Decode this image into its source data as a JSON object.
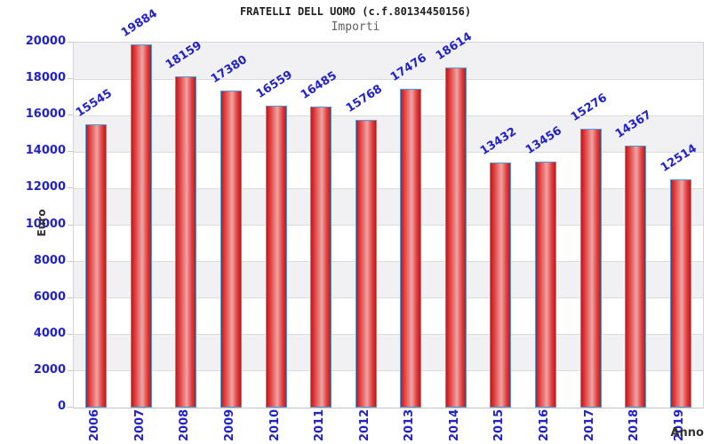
{
  "chart_data": {
    "type": "bar",
    "title": "FRATELLI DELL UOMO (c.f.80134450156)",
    "subtitle": "Importi",
    "xlabel": "Anno",
    "ylabel": "Euro",
    "categories": [
      "2006",
      "2007",
      "2008",
      "2009",
      "2010",
      "2011",
      "2012",
      "2013",
      "2014",
      "2015",
      "2016",
      "2017",
      "2018",
      "2019"
    ],
    "values": [
      15545,
      19884,
      18159,
      17380,
      16559,
      16485,
      15768,
      17476,
      18614,
      13432,
      13456,
      15276,
      14367,
      12514
    ],
    "ylim": [
      0,
      20000
    ],
    "ytick_step": 2000,
    "grid": "alternating-horizontal-bands",
    "legend": null
  },
  "style": {
    "bar_fill_edge": "#b81c1c",
    "bar_fill_mid": "#e13b3b",
    "bar_fill_highlight": "#efa4a4",
    "bar_border": "#4f9ad9",
    "tick_label_color": "#2222cc",
    "value_label_color": "#2222cc",
    "axis_title_color": "#333333",
    "band_color": "#f1f1f3",
    "gridline_color": "#dcdcdc",
    "tickmark_color": "#c9c9c9",
    "title_color": "#202020",
    "subtitle_color": "#5f5f5f",
    "background": "#ffffff"
  }
}
